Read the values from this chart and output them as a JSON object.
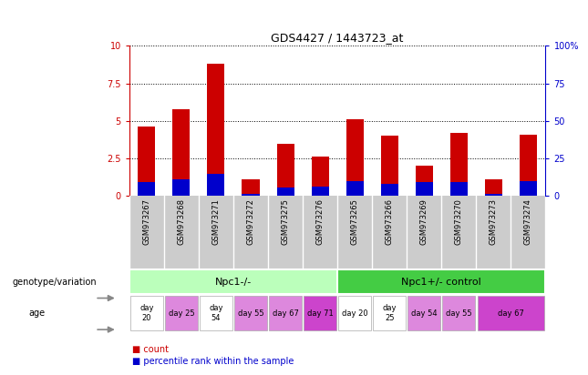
{
  "title": "GDS4427 / 1443723_at",
  "samples": [
    "GSM973267",
    "GSM973268",
    "GSM973271",
    "GSM973272",
    "GSM973275",
    "GSM973276",
    "GSM973265",
    "GSM973266",
    "GSM973269",
    "GSM973270",
    "GSM973273",
    "GSM973274"
  ],
  "counts": [
    4.6,
    5.8,
    8.8,
    1.1,
    3.5,
    2.6,
    5.1,
    4.0,
    2.0,
    4.2,
    1.1,
    4.1
  ],
  "percentile_ranks": [
    0.9,
    1.1,
    1.5,
    0.15,
    0.55,
    0.6,
    1.0,
    0.8,
    0.9,
    0.9,
    0.15,
    1.0
  ],
  "bar_color": "#cc0000",
  "percentile_color": "#0000cc",
  "ylim_left": [
    0,
    10
  ],
  "ylim_right": [
    0,
    100
  ],
  "yticks_left": [
    0,
    2.5,
    5.0,
    7.5,
    10
  ],
  "yticks_right": [
    0,
    25,
    50,
    75,
    100
  ],
  "ytick_labels_left": [
    "0",
    "2.5",
    "5",
    "7.5",
    "10"
  ],
  "ytick_labels_right": [
    "0",
    "25",
    "50",
    "75",
    "100%"
  ],
  "genotype_groups": [
    {
      "label": "Npc1-/-",
      "start": 0,
      "end": 6,
      "color": "#bbffbb"
    },
    {
      "label": "Npc1+/- control",
      "start": 6,
      "end": 12,
      "color": "#44cc44"
    }
  ],
  "age_groups": [
    {
      "label": "day\n20",
      "start": 0,
      "end": 1,
      "color": "#ffffff"
    },
    {
      "label": "day 25",
      "start": 1,
      "end": 2,
      "color": "#dd88dd"
    },
    {
      "label": "day\n54",
      "start": 2,
      "end": 3,
      "color": "#ffffff"
    },
    {
      "label": "day 55",
      "start": 3,
      "end": 4,
      "color": "#dd88dd"
    },
    {
      "label": "day 67",
      "start": 4,
      "end": 5,
      "color": "#dd88dd"
    },
    {
      "label": "day 71",
      "start": 5,
      "end": 6,
      "color": "#cc44cc"
    },
    {
      "label": "day 20",
      "start": 6,
      "end": 7,
      "color": "#ffffff"
    },
    {
      "label": "day\n25",
      "start": 7,
      "end": 8,
      "color": "#ffffff"
    },
    {
      "label": "day 54",
      "start": 8,
      "end": 9,
      "color": "#dd88dd"
    },
    {
      "label": "day 55",
      "start": 9,
      "end": 10,
      "color": "#dd88dd"
    },
    {
      "label": "day 67",
      "start": 10,
      "end": 12,
      "color": "#cc44cc"
    }
  ],
  "sample_bg_color": "#cccccc",
  "axis_color_left": "#cc0000",
  "axis_color_right": "#0000cc",
  "bg_color": "#ffffff",
  "bar_width": 0.5
}
